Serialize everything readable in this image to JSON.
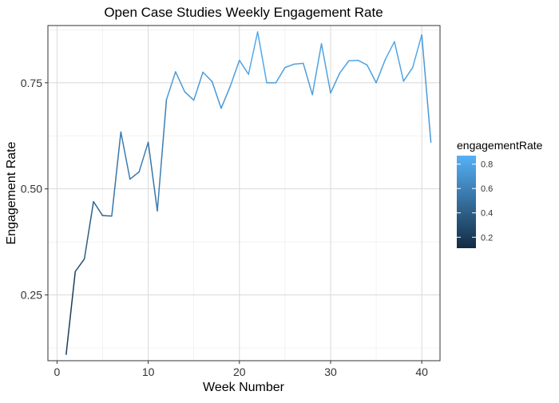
{
  "chart_data": {
    "type": "line",
    "title": "Open Case Studies Weekly Engagement Rate",
    "xlabel": "Week Number",
    "ylabel": "Engagement Rate",
    "xlim": [
      -1,
      42
    ],
    "ylim": [
      0.095,
      0.885
    ],
    "x_ticks": [
      0,
      10,
      20,
      30,
      40
    ],
    "x_tick_labels": [
      "0",
      "10",
      "20",
      "30",
      "40"
    ],
    "y_ticks": [
      0.25,
      0.5,
      0.75
    ],
    "y_tick_labels": [
      "0.25",
      "0.50",
      "0.75"
    ],
    "grid": true,
    "color_scale": {
      "low_color": "#132B43",
      "high_color": "#56B1F7",
      "domain": [
        0.11,
        0.87
      ]
    },
    "legend": {
      "title": "engagementRate",
      "placement": "right",
      "breaks": [
        0.2,
        0.4,
        0.6,
        0.8
      ],
      "labels": [
        "0.2",
        "0.4",
        "0.6",
        "0.8"
      ]
    },
    "x": [
      1,
      2,
      3,
      4,
      5,
      6,
      7,
      8,
      9,
      10,
      11,
      12,
      13,
      14,
      15,
      16,
      17,
      18,
      19,
      20,
      21,
      22,
      23,
      24,
      25,
      26,
      27,
      28,
      29,
      30,
      31,
      32,
      33,
      34,
      35,
      36,
      37,
      38,
      39,
      40,
      41
    ],
    "y": [
      0.11,
      0.305,
      0.335,
      0.47,
      0.437,
      0.436,
      0.634,
      0.523,
      0.54,
      0.61,
      0.448,
      0.71,
      0.776,
      0.729,
      0.709,
      0.775,
      0.753,
      0.69,
      0.742,
      0.803,
      0.77,
      0.87,
      0.75,
      0.75,
      0.786,
      0.794,
      0.796,
      0.722,
      0.842,
      0.726,
      0.773,
      0.802,
      0.803,
      0.792,
      0.75,
      0.805,
      0.847,
      0.754,
      0.786,
      0.863,
      0.61
    ]
  }
}
